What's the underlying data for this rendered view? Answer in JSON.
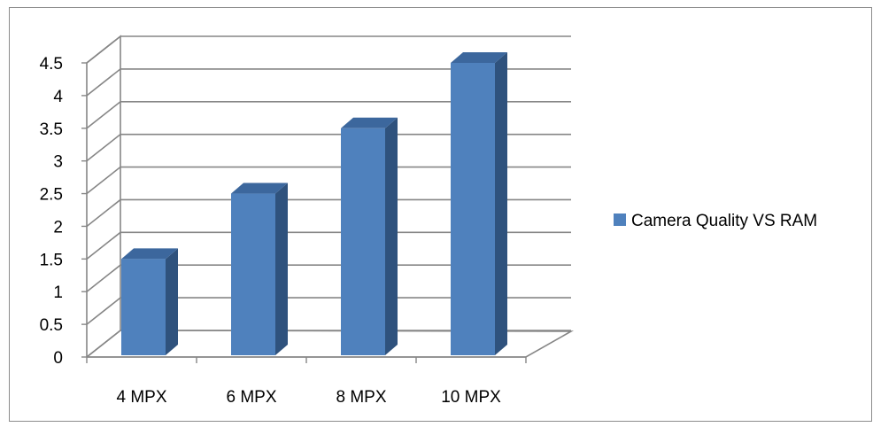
{
  "chart_data": {
    "type": "bar",
    "categories": [
      "4 MPX",
      "6 MPX",
      "8 MPX",
      "10 MPX"
    ],
    "series": [
      {
        "name": "Camera Quality VS RAM",
        "values": [
          1.5,
          2.5,
          3.5,
          4.5
        ]
      }
    ],
    "ylim": [
      0,
      4.5
    ],
    "yticks": [
      "0",
      "0.5",
      "1",
      "1.5",
      "2",
      "2.5",
      "3",
      "3.5",
      "4",
      "4.5"
    ],
    "grid": true,
    "style": "3d-column",
    "legend_position": "right",
    "colors": {
      "bar_front": "#4f81bd",
      "bar_side": "#2f527d",
      "bar_top": "#3c679d",
      "grid": "#868686"
    }
  }
}
